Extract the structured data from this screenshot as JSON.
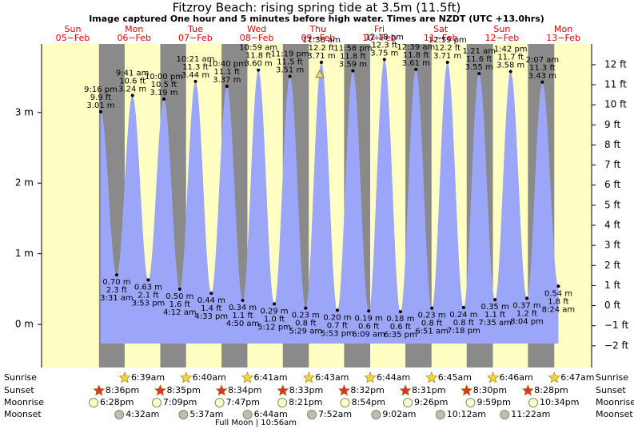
{
  "chart_data": {
    "type": "tide",
    "title": "Fitzroy Beach: rising  spring tide at 3.5m (11.5ft)",
    "subtitle": "Image captured One hour and 5 minutes before high water. Times are NZDT (UTC +13.0hrs)",
    "days": [
      {
        "name": "Sun",
        "date": "05−Feb"
      },
      {
        "name": "Mon",
        "date": "06−Feb"
      },
      {
        "name": "Tue",
        "date": "07−Feb"
      },
      {
        "name": "Wed",
        "date": "08−Feb"
      },
      {
        "name": "Thu",
        "date": "09−Feb"
      },
      {
        "name": "Fri",
        "date": "10−Feb"
      },
      {
        "name": "Sat",
        "date": "11−Feb"
      },
      {
        "name": "Sun",
        "date": "12−Feb"
      },
      {
        "name": "Mon",
        "date": "13−Feb"
      }
    ],
    "tides": [
      [
        {
          "time": "9:16 pm",
          "ft": {
            "value": 9.9,
            "label": "9.9 ft"
          },
          "m": {
            "value": 3.01,
            "label": "3.01 m"
          }
        }
      ],
      [
        {
          "time": "3:31 am",
          "ft": {
            "value": 2.3,
            "label": "2.3 ft"
          },
          "m": {
            "value": 0.7,
            "label": "0.70 m"
          }
        },
        {
          "time": "9:41 am",
          "ft": {
            "value": 10.6,
            "label": "10.6 ft"
          },
          "m": {
            "value": 3.24,
            "label": "3.24 m"
          }
        },
        {
          "time": "3:53 pm",
          "ft": {
            "value": 2.1,
            "label": "2.1 ft"
          },
          "m": {
            "value": 0.63,
            "label": "0.63 m"
          }
        },
        {
          "time": "10:00 pm",
          "ft": {
            "value": 10.5,
            "label": "10.5 ft"
          },
          "m": {
            "value": 3.19,
            "label": "3.19 m"
          }
        }
      ],
      [
        {
          "time": "4:12 am",
          "ft": {
            "value": 1.6,
            "label": "1.6 ft"
          },
          "m": {
            "value": 0.5,
            "label": "0.50 m"
          }
        },
        {
          "time": "10:21 am",
          "ft": {
            "value": 11.3,
            "label": "11.3 ft"
          },
          "m": {
            "value": 3.44,
            "label": "3.44 m"
          }
        },
        {
          "time": "4:33 pm",
          "ft": {
            "value": 1.4,
            "label": "1.4 ft"
          },
          "m": {
            "value": 0.44,
            "label": "0.44 m"
          }
        },
        {
          "time": "10:40 pm",
          "ft": {
            "value": 11.1,
            "label": "11.1 ft"
          },
          "m": {
            "value": 3.37,
            "label": "3.37 m"
          }
        }
      ],
      [
        {
          "time": "4:50 am",
          "ft": {
            "value": 1.1,
            "label": "1.1 ft"
          },
          "m": {
            "value": 0.34,
            "label": "0.34 m"
          }
        },
        {
          "time": "10:59 am",
          "ft": {
            "value": 11.8,
            "label": "11.8 ft"
          },
          "m": {
            "value": 3.6,
            "label": "3.60 m"
          }
        },
        {
          "time": "5:12 pm",
          "ft": {
            "value": 1.0,
            "label": "1.0 ft"
          },
          "m": {
            "value": 0.29,
            "label": "0.29 m"
          }
        },
        {
          "time": "11:19 pm",
          "ft": {
            "value": 11.5,
            "label": "11.5 ft"
          },
          "m": {
            "value": 3.51,
            "label": "3.51 m"
          }
        }
      ],
      [
        {
          "time": "5:29 am",
          "ft": {
            "value": 0.8,
            "label": "0.8 ft"
          },
          "m": {
            "value": 0.23,
            "label": "0.23 m"
          }
        },
        {
          "time": "11:38 am",
          "ft": {
            "value": 12.2,
            "label": "12.2 ft"
          },
          "m": {
            "value": 3.71,
            "label": "3.71 m"
          }
        },
        {
          "time": "5:53 pm",
          "ft": {
            "value": 0.7,
            "label": "0.7 ft"
          },
          "m": {
            "value": 0.2,
            "label": "0.20 m"
          }
        },
        {
          "time": "11:58 pm",
          "ft": {
            "value": 11.8,
            "label": "11.8 ft"
          },
          "m": {
            "value": 3.59,
            "label": "3.59 m"
          }
        }
      ],
      [
        {
          "time": "6:09 am",
          "ft": {
            "value": 0.6,
            "label": "0.6 ft"
          },
          "m": {
            "value": 0.19,
            "label": "0.19 m"
          }
        },
        {
          "time": "12:18 pm",
          "ft": {
            "value": 12.3,
            "label": "12.3 ft"
          },
          "m": {
            "value": 3.75,
            "label": "3.75 m"
          }
        },
        {
          "time": "6:35 pm",
          "ft": {
            "value": 0.6,
            "label": "0.6 ft"
          },
          "m": {
            "value": 0.18,
            "label": "0.18 m"
          }
        }
      ],
      [
        {
          "time": "12:39 am",
          "ft": {
            "value": 11.8,
            "label": "11.8 ft"
          },
          "m": {
            "value": 3.61,
            "label": "3.61 m"
          }
        },
        {
          "time": "6:51 am",
          "ft": {
            "value": 0.8,
            "label": "0.8 ft"
          },
          "m": {
            "value": 0.23,
            "label": "0.23 m"
          }
        },
        {
          "time": "12:59 pm",
          "ft": {
            "value": 12.2,
            "label": "12.2 ft"
          },
          "m": {
            "value": 3.71,
            "label": "3.71 m"
          }
        },
        {
          "time": "7:18 pm",
          "ft": {
            "value": 0.8,
            "label": "0.8 ft"
          },
          "m": {
            "value": 0.24,
            "label": "0.24 m"
          }
        }
      ],
      [
        {
          "time": "1:21 am",
          "ft": {
            "value": 11.6,
            "label": "11.6 ft"
          },
          "m": {
            "value": 3.55,
            "label": "3.55 m"
          }
        },
        {
          "time": "7:35 am",
          "ft": {
            "value": 1.1,
            "label": "1.1 ft"
          },
          "m": {
            "value": 0.35,
            "label": "0.35 m"
          }
        },
        {
          "time": "1:42 pm",
          "ft": {
            "value": 11.7,
            "label": "11.7 ft"
          },
          "m": {
            "value": 3.58,
            "label": "3.58 m"
          }
        },
        {
          "time": "8:04 pm",
          "ft": {
            "value": 1.2,
            "label": "1.2 ft"
          },
          "m": {
            "value": 0.37,
            "label": "0.37 m"
          }
        }
      ],
      [
        {
          "time": "2:07 am",
          "ft": {
            "value": 11.3,
            "label": "11.3 ft"
          },
          "m": {
            "value": 3.43,
            "label": "3.43 m"
          }
        },
        {
          "time": "8:24 am",
          "ft": {
            "value": 1.8,
            "label": "1.8 ft"
          },
          "m": {
            "value": 0.54,
            "label": "0.54 m"
          }
        }
      ]
    ],
    "ylim": [
      -0.61,
      3.97
    ],
    "yticks": [
      {
        "value": 0,
        "label": "0 m"
      },
      {
        "value": 1,
        "label": "1 m"
      },
      {
        "value": 2,
        "label": "2 m"
      },
      {
        "value": 3,
        "label": "3 m"
      }
    ],
    "y2lim": [
      -3.08,
      13.03
    ],
    "y2ticks": [
      {
        "value": -2,
        "label": "−2 ft"
      },
      {
        "value": -1,
        "label": "−1 ft"
      },
      {
        "value": 0,
        "label": "0 ft"
      },
      {
        "value": 1,
        "label": "1 ft"
      },
      {
        "value": 2,
        "label": "2 ft"
      },
      {
        "value": 3,
        "label": "3 ft"
      },
      {
        "value": 4,
        "label": "4 ft"
      },
      {
        "value": 5,
        "label": "5 ft"
      },
      {
        "value": 6,
        "label": "6 ft"
      },
      {
        "value": 7,
        "label": "7 ft"
      },
      {
        "value": 8,
        "label": "8 ft"
      },
      {
        "value": 9,
        "label": "9 ft"
      },
      {
        "value": 10,
        "label": "10 ft"
      },
      {
        "value": 11,
        "label": "11 ft"
      },
      {
        "value": 12,
        "label": "12 ft"
      }
    ],
    "colors": {
      "water": "#9ca6f8",
      "day": "#ffffc4",
      "night": "#8a8a8a",
      "day_label": "#e00000"
    },
    "rows": [
      {
        "label": "Sunrise",
        "times": [
          null,
          "6:39am",
          "6:40am",
          "6:41am",
          "6:43am",
          "6:44am",
          "6:45am",
          "6:46am",
          "6:47am"
        ]
      },
      {
        "label": "Sunset",
        "times": [
          "8:36pm",
          "8:35pm",
          "8:34pm",
          "8:33pm",
          "8:32pm",
          "8:31pm",
          "8:30pm",
          "8:28pm",
          null
        ]
      },
      {
        "label": "Moonrise",
        "times": [
          "6:28pm",
          "7:09pm",
          "7:47pm",
          "8:21pm",
          "8:54pm",
          "9:26pm",
          "9:59pm",
          "10:34pm",
          null
        ]
      },
      {
        "label": "Moonset",
        "times": [
          null,
          "4:32am",
          "5:37am",
          "6:44am",
          "7:52am",
          "9:02am",
          "10:12am",
          "11:22am",
          null
        ]
      }
    ],
    "full_moon": "Full Moon | 10:56am"
  }
}
